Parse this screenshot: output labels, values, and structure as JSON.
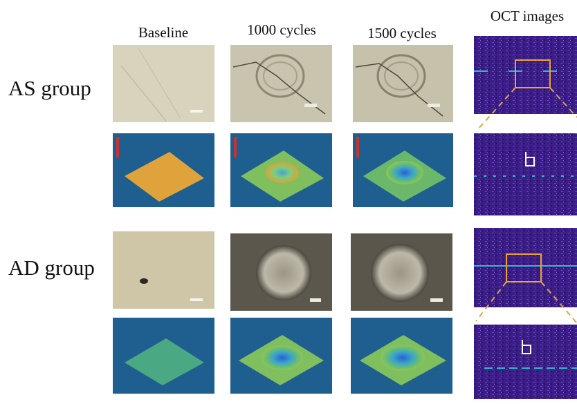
{
  "columns": [
    "Baseline",
    "1000 cycles",
    "1500 cycles",
    "OCT images"
  ],
  "rows": [
    "AS group",
    "AD group"
  ]
}
